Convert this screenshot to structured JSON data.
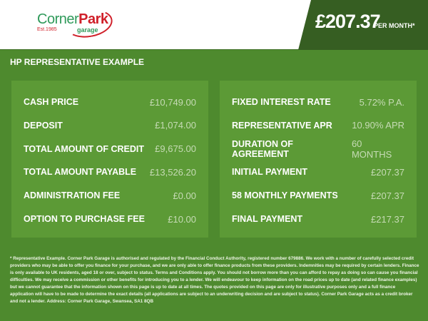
{
  "logo": {
    "part1": "Corner",
    "part2": "Park",
    "est": "Est.1985",
    "sub": "garage"
  },
  "header": {
    "price": "£207.37",
    "per_month": "PER MONTH*"
  },
  "title": "HP REPRESENTATIVE EXAMPLE",
  "left": [
    {
      "label": "CASH PRICE",
      "value": "£10,749.00"
    },
    {
      "label": "DEPOSIT",
      "value": "£1,074.00"
    },
    {
      "label": "TOTAL AMOUNT OF CREDIT",
      "value": "£9,675.00"
    },
    {
      "label": "TOTAL AMOUNT PAYABLE",
      "value": "£13,526.20"
    },
    {
      "label": "ADMINISTRATION FEE",
      "value": "£0.00"
    },
    {
      "label": "OPTION TO PURCHASE FEE",
      "value": "£10.00"
    }
  ],
  "right": [
    {
      "label": "FIXED INTEREST RATE",
      "value": "5.72% P.A."
    },
    {
      "label": "REPRESENTATIVE APR",
      "value": "10.90% APR"
    },
    {
      "label": "DURATION OF AGREEMENT",
      "value": "60 MONTHS"
    },
    {
      "label": "INITIAL PAYMENT",
      "value": "£207.37"
    },
    {
      "label": "58 MONTHLY PAYMENTS",
      "value": "£207.37"
    },
    {
      "label": "FINAL PAYMENT",
      "value": "£217.37"
    }
  ],
  "footer": "* Representative Example. Corner Park Garage is authorised and regulated by the Financial Conduct Authority, registered number 679886. We work with a number of carefully selected credit providers who may be able to offer you finance for your purchase, and we are only able to offer finance products from these providers. Indemnities may be required by certain lenders. Finance is only available to UK residents, aged 18 or over, subject to status. Terms and Conditions apply. You should not borrow more than you can afford to repay as doing so can cause you financial difficulties. We may receive a commission or other benefits for introducing you to a lender. We will endeavour to keep information on the road prices up to date (and related finance examples) but we cannot guarantee that the information shown on this page is up to date at all times. The quotes provided on this page are only for illustrative purposes only and a full finance application will have to be made to determine the exact details (all applications are subject to an underwriting decision and are subject to status). Corner Park Garage acts as a credit broker and not a lender. Address: Corner Park Garage, Swansea, SA1 8QB"
}
